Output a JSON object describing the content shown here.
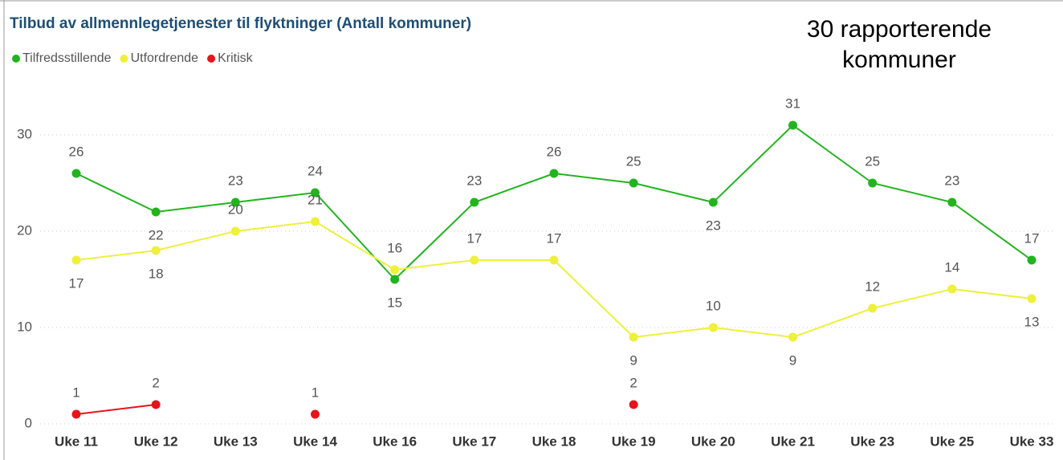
{
  "chart_data": {
    "type": "line",
    "title": "Tilbud av allmennlegetjenester til flyktninger (Antall kommuner)",
    "annotation": "30 rapporterende kommuner",
    "categories": [
      "Uke 11",
      "Uke 12",
      "Uke 13",
      "Uke 14",
      "Uke 16",
      "Uke 17",
      "Uke 18",
      "Uke 19",
      "Uke 20",
      "Uke 21",
      "Uke 23",
      "Uke 25",
      "Uke 33"
    ],
    "series": [
      {
        "name": "Tilfredsstillende",
        "color": "#22b41e",
        "values": [
          26,
          22,
          23,
          24,
          15,
          23,
          26,
          25,
          23,
          31,
          25,
          23,
          17
        ]
      },
      {
        "name": "Utfordrende",
        "color": "#eef03a",
        "values": [
          17,
          18,
          20,
          21,
          16,
          17,
          17,
          9,
          10,
          9,
          12,
          14,
          13
        ]
      },
      {
        "name": "Kritisk",
        "color": "#e8141a",
        "values": [
          1,
          2,
          null,
          1,
          null,
          null,
          null,
          2,
          null,
          null,
          null,
          null,
          null
        ]
      }
    ],
    "ylim": [
      0,
      35
    ],
    "yticks": [
      0,
      10,
      20,
      30
    ],
    "grid": true,
    "legend": "top-left"
  }
}
